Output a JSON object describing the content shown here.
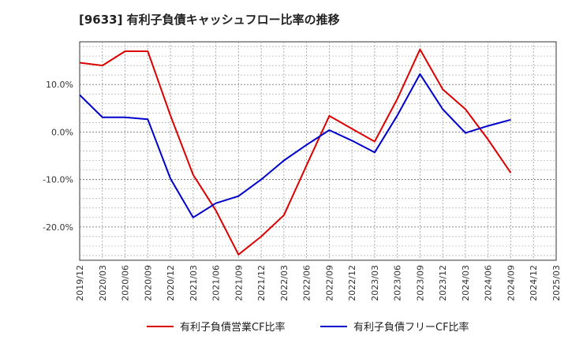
{
  "chart_data": {
    "type": "line",
    "title": "[9633]  有利子負債キャッシュフロー比率の推移",
    "xlabel": "",
    "ylabel": "",
    "categories": [
      "2019/12",
      "2020/03",
      "2020/06",
      "2020/09",
      "2020/12",
      "2021/03",
      "2021/06",
      "2021/09",
      "2021/12",
      "2022/03",
      "2022/06",
      "2022/09",
      "2022/12",
      "2023/03",
      "2023/06",
      "2023/09",
      "2023/12",
      "2024/03",
      "2024/06",
      "2024/09",
      "2024/12",
      "2025/03"
    ],
    "ylim": [
      -27,
      19
    ],
    "yticks": [
      -20,
      -10,
      0,
      10
    ],
    "ytick_labels": [
      "-20.0%",
      "-10.0%",
      "0.0%",
      "10.0%"
    ],
    "grid": true,
    "legend_position": "bottom",
    "series": [
      {
        "name": "有利子負債営業CF比率",
        "color": "#dd0000",
        "values": [
          14.6,
          14.0,
          17.0,
          17.0,
          3.5,
          -9.0,
          -16.5,
          -25.8,
          -22.0,
          -17.5,
          -7.0,
          3.4,
          0.7,
          -2.0,
          7.0,
          17.4,
          9.0,
          4.8,
          -1.6,
          -8.6,
          null,
          null
        ]
      },
      {
        "name": "有利子負債フリーCF比率",
        "color": "#0000cc",
        "values": [
          7.8,
          3.1,
          3.1,
          2.7,
          -9.8,
          -18.0,
          -15.0,
          -13.5,
          -10.0,
          -6.0,
          -2.7,
          0.4,
          -1.8,
          -4.3,
          3.5,
          12.2,
          4.8,
          -0.2,
          1.3,
          2.6,
          null,
          null
        ]
      }
    ]
  }
}
